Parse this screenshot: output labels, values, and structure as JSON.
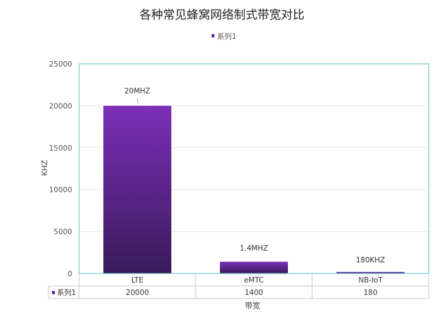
{
  "chart_data": {
    "type": "bar",
    "title": "各种常见蜂窝网络制式带宽对比",
    "xlabel": "带宽",
    "ylabel": "KHZ",
    "categories": [
      "LTE",
      "eMTC",
      "NB-IoT"
    ],
    "series": [
      {
        "name": "系列1",
        "values": [
          20000,
          1400,
          180
        ],
        "data_labels": [
          "20MHZ",
          "1.4MHZ",
          "180KHZ"
        ],
        "color": "#6a2a9e"
      }
    ],
    "ylim": [
      0,
      25000
    ],
    "yticks": [
      0,
      5000,
      10000,
      15000,
      20000,
      25000
    ],
    "legend": "top-center",
    "grid": true,
    "data_table": true,
    "colors": {
      "bar_top": "#7b2fb8",
      "bar_bottom": "#3a1a5a",
      "plot_border": "#5fbfc9",
      "grid": "#e8e8e8"
    }
  }
}
